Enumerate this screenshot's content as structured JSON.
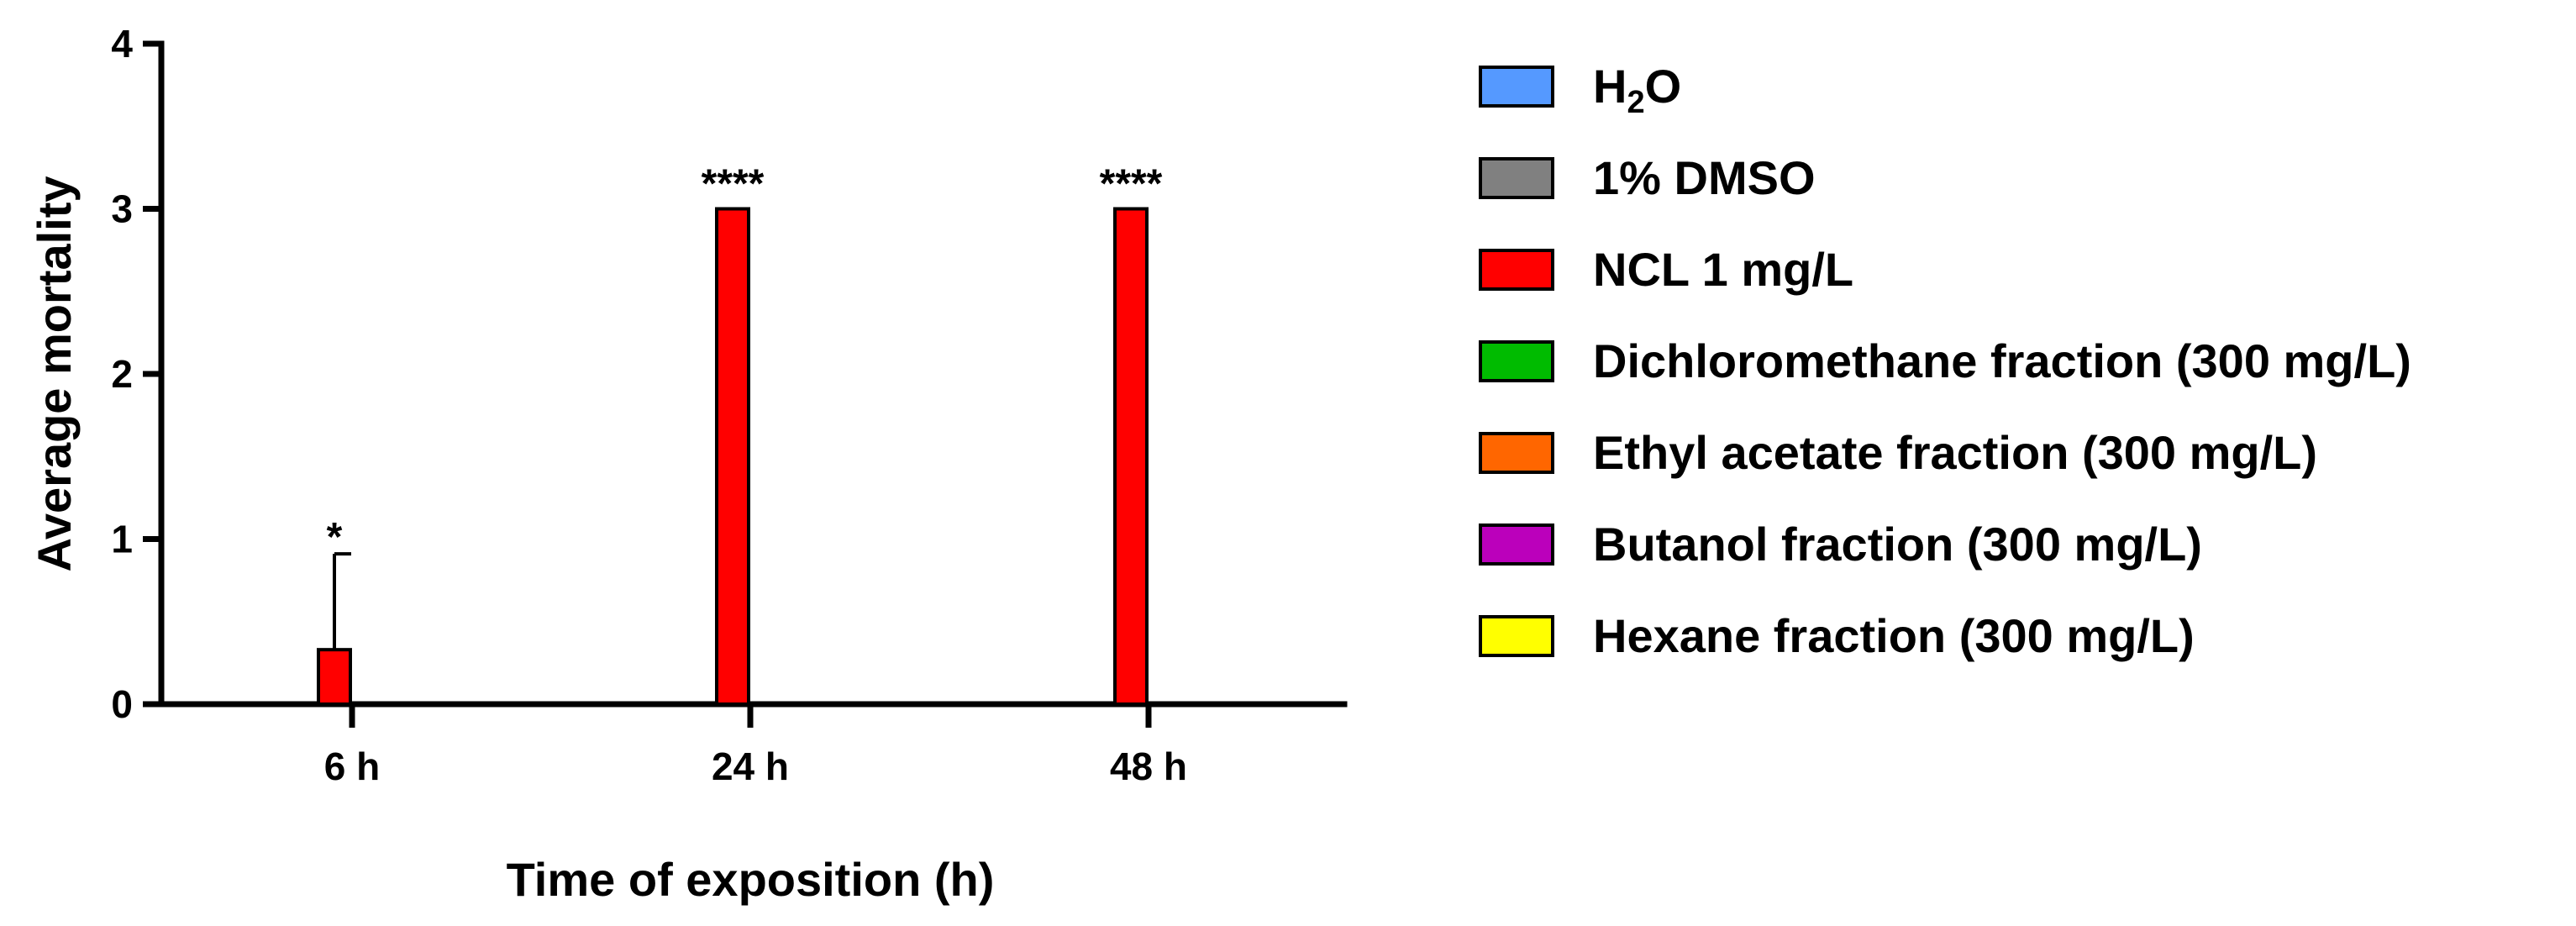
{
  "chart_data": {
    "type": "bar",
    "xlabel": "Time of exposition (h)",
    "ylabel": "Average mortality",
    "ylim": [
      0,
      4
    ],
    "yticks": [
      0,
      1,
      2,
      3,
      4
    ],
    "categories": [
      "6 h",
      "24 h",
      "48 h"
    ],
    "series": [
      {
        "name": "H₂O",
        "name_base": "H",
        "name_sub": "2",
        "name_tail": "O",
        "color": "#5599ff",
        "values": [
          0,
          0,
          0
        ]
      },
      {
        "name": "1% DMSO",
        "color": "#808080",
        "values": [
          0,
          0,
          0
        ]
      },
      {
        "name": "NCL 1 mg/L",
        "color": "#ff0000",
        "values": [
          0.33,
          3,
          3
        ],
        "error": [
          0.58,
          0,
          0
        ]
      },
      {
        "name": "Dichloromethane fraction (300 mg/L)",
        "color": "#00bb00",
        "values": [
          0,
          0,
          0
        ]
      },
      {
        "name": "Ethyl acetate fraction (300 mg/L)",
        "color": "#ff6600",
        "values": [
          0,
          0,
          0
        ]
      },
      {
        "name": "Butanol fraction (300 mg/L)",
        "color": "#bb00bb",
        "values": [
          0,
          0,
          0
        ]
      },
      {
        "name": "Hexane fraction (300 mg/L)",
        "color": "#ffff00",
        "values": [
          0,
          0,
          0
        ]
      }
    ],
    "annotations": [
      {
        "category": "6 h",
        "series": "NCL 1 mg/L",
        "text": "*"
      },
      {
        "category": "24 h",
        "series": "NCL 1 mg/L",
        "text": "****"
      },
      {
        "category": "48 h",
        "series": "NCL 1 mg/L",
        "text": "****"
      }
    ],
    "grid": false,
    "legend_position": "right"
  }
}
